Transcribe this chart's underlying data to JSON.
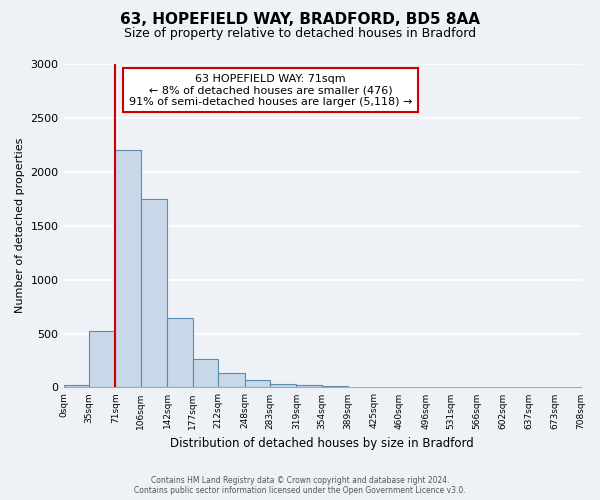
{
  "title": "63, HOPEFIELD WAY, BRADFORD, BD5 8AA",
  "subtitle": "Size of property relative to detached houses in Bradford",
  "xlabel": "Distribution of detached houses by size in Bradford",
  "ylabel": "Number of detached properties",
  "bar_color": "#c8d8e8",
  "bar_edge_color": "#5a8ab0",
  "bar_values": [
    20,
    520,
    2200,
    1750,
    640,
    260,
    130,
    70,
    35,
    20,
    10,
    5,
    0,
    0,
    0,
    0,
    0,
    0,
    0,
    0
  ],
  "bin_labels": [
    "0sqm",
    "35sqm",
    "71sqm",
    "106sqm",
    "142sqm",
    "177sqm",
    "212sqm",
    "248sqm",
    "283sqm",
    "319sqm",
    "354sqm",
    "389sqm",
    "425sqm",
    "460sqm",
    "496sqm",
    "531sqm",
    "566sqm",
    "602sqm",
    "637sqm",
    "673sqm",
    "708sqm"
  ],
  "bin_edges": [
    0,
    35,
    71,
    106,
    142,
    177,
    212,
    248,
    283,
    319,
    354,
    389,
    425,
    460,
    496,
    531,
    566,
    602,
    637,
    673,
    708
  ],
  "property_size": 71,
  "ylim": [
    0,
    3000
  ],
  "yticks": [
    0,
    500,
    1000,
    1500,
    2000,
    2500,
    3000
  ],
  "annotation_title": "63 HOPEFIELD WAY: 71sqm",
  "annotation_line1": "← 8% of detached houses are smaller (476)",
  "annotation_line2": "91% of semi-detached houses are larger (5,118) →",
  "annotation_box_color": "#ffffff",
  "annotation_box_edge": "#cc0000",
  "red_line_color": "#cc0000",
  "footer_line1": "Contains HM Land Registry data © Crown copyright and database right 2024.",
  "footer_line2": "Contains public sector information licensed under the Open Government Licence v3.0.",
  "background_color": "#eef2f7",
  "grid_color": "#ffffff"
}
